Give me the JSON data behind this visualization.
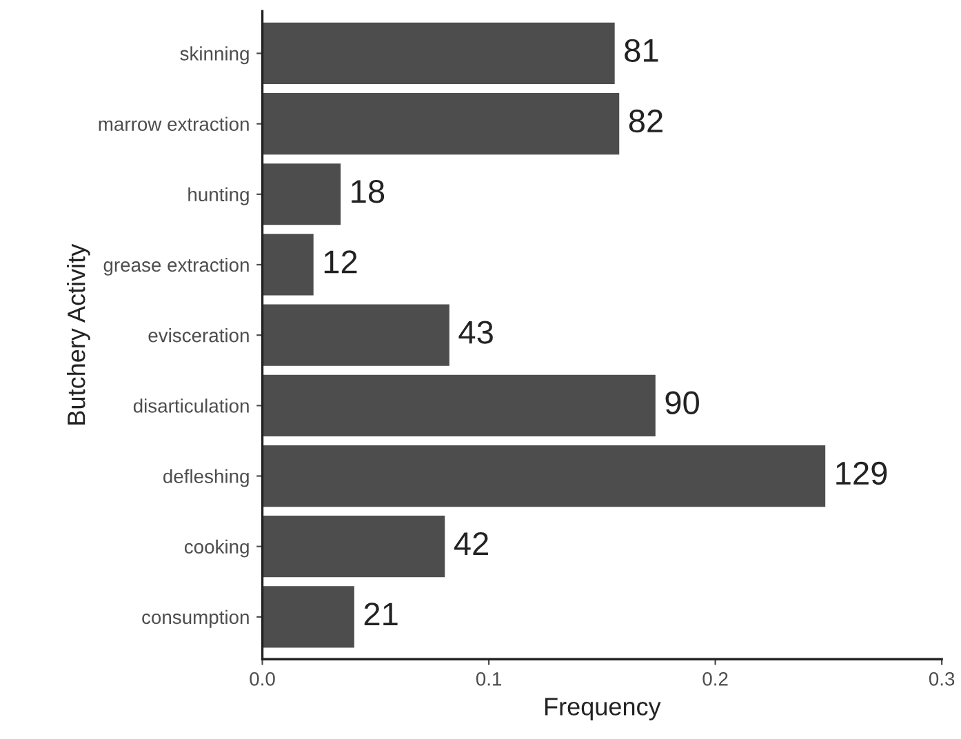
{
  "chart_data": {
    "type": "bar",
    "orientation": "horizontal",
    "xlabel": "Frequency",
    "ylabel": "Butchery Activity",
    "categories": [
      "skinning",
      "marrow extraction",
      "hunting",
      "grease extraction",
      "evisceration",
      "disarticulation",
      "defleshing",
      "cooking",
      "consumption"
    ],
    "values": [
      0.156,
      0.158,
      0.035,
      0.023,
      0.083,
      0.174,
      0.249,
      0.081,
      0.041
    ],
    "annotations": [
      {
        "text": "81",
        "x": 0.156,
        "y": "skinning"
      },
      {
        "text": "82",
        "x": 0.158,
        "y": "marrow extraction"
      },
      {
        "text": "18",
        "x": 0.035,
        "y": "hunting"
      },
      {
        "text": "12",
        "x": 0.023,
        "y": "grease extraction"
      },
      {
        "text": "43",
        "x": 0.083,
        "y": "evisceration"
      },
      {
        "text": "90",
        "x": 0.174,
        "y": "disarticulation"
      },
      {
        "text": "129",
        "x": 0.249,
        "y": "defleshing"
      },
      {
        "text": "42",
        "x": 0.081,
        "y": "cooking"
      },
      {
        "text": "21",
        "x": 0.041,
        "y": "consumption"
      }
    ],
    "color": "#4d4d4d",
    "xlim": [
      0,
      0.3
    ],
    "xticks": [
      {
        "value": 0,
        "label": "0.0"
      },
      0.1,
      0.2,
      0.3
    ],
    "grid": false,
    "legend": false
  }
}
